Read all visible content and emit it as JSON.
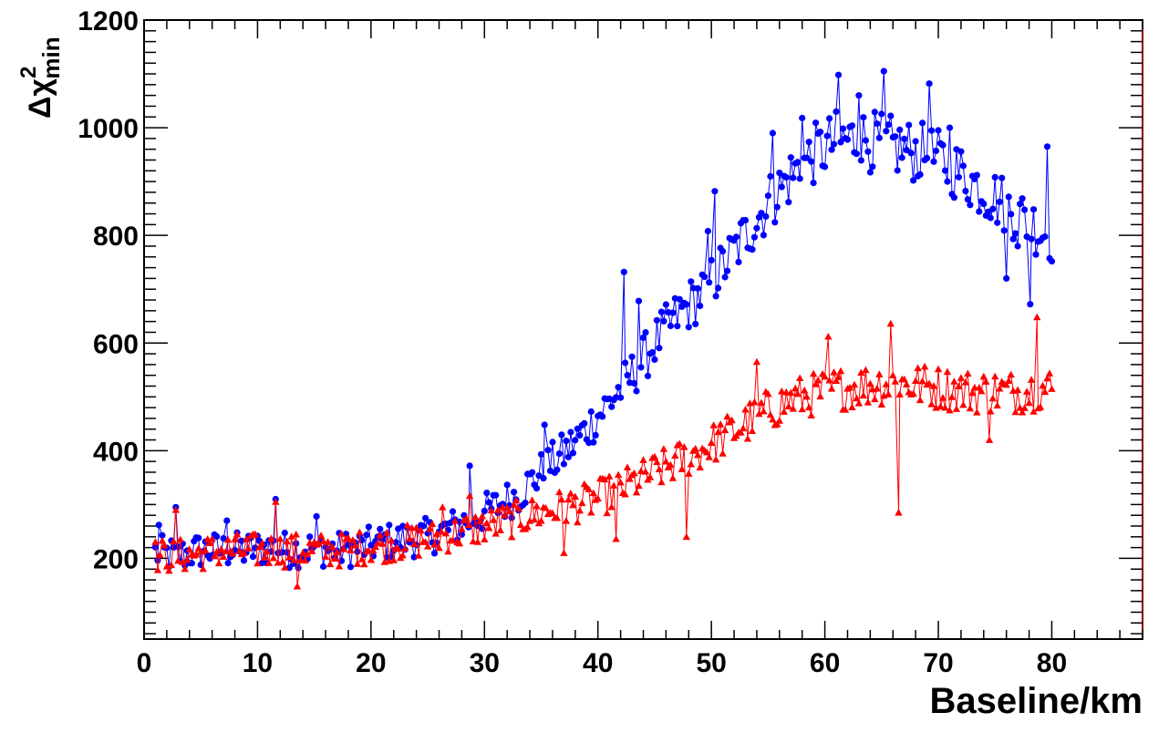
{
  "chart_data": {
    "type": "scatter",
    "title": "",
    "xlabel": "Baseline/km",
    "ylabel_main": "Δχ",
    "ylabel_sup": "2",
    "ylabel_sub": "min",
    "xlim": [
      0,
      88
    ],
    "ylim": [
      50,
      1200
    ],
    "x_ticks": [
      0,
      10,
      20,
      30,
      40,
      50,
      60,
      70,
      80
    ],
    "y_ticks": [
      200,
      400,
      600,
      800,
      1000,
      1200
    ],
    "grid": false,
    "series": [
      {
        "color": "#0000ff",
        "marker": "circle",
        "x": [
          1,
          3,
          5,
          7,
          9,
          11,
          13,
          15,
          17,
          19,
          21,
          23,
          25,
          27,
          29,
          31,
          33,
          35,
          37,
          39,
          41,
          43,
          45,
          47,
          49,
          51,
          53,
          55,
          57,
          59,
          61,
          63,
          65,
          67,
          69,
          71,
          73,
          75,
          77,
          79,
          80
        ],
        "y": [
          210,
          205,
          215,
          215,
          215,
          220,
          215,
          220,
          215,
          220,
          230,
          235,
          240,
          255,
          275,
          295,
          320,
          360,
          395,
          440,
          490,
          540,
          600,
          650,
          690,
          740,
          800,
          860,
          910,
          950,
          975,
          980,
          970,
          960,
          950,
          930,
          900,
          870,
          840,
          810,
          800
        ],
        "noise": 28,
        "spikes": [
          [
            1.3,
            262
          ],
          [
            2.8,
            295
          ],
          [
            7.3,
            270
          ],
          [
            11.6,
            310
          ],
          [
            15.2,
            278
          ],
          [
            28.7,
            372
          ],
          [
            35.3,
            448
          ],
          [
            42.3,
            732
          ],
          [
            43.6,
            678
          ],
          [
            49.7,
            808
          ],
          [
            50.3,
            882
          ],
          [
            55.4,
            990
          ],
          [
            58.0,
            1018
          ],
          [
            61.2,
            1098
          ],
          [
            63.0,
            1060
          ],
          [
            65.2,
            1105
          ],
          [
            69.2,
            1082
          ],
          [
            71.0,
            1000
          ],
          [
            76.0,
            720
          ],
          [
            77.0,
            780
          ],
          [
            78.1,
            672
          ],
          [
            79.6,
            965
          ]
        ]
      },
      {
        "color": "#ff0000",
        "marker": "triangle",
        "x": [
          1,
          3,
          5,
          7,
          9,
          11,
          13,
          15,
          17,
          19,
          21,
          23,
          25,
          27,
          29,
          31,
          33,
          35,
          37,
          39,
          41,
          43,
          45,
          47,
          49,
          51,
          53,
          55,
          57,
          59,
          61,
          63,
          65,
          67,
          69,
          71,
          73,
          75,
          77,
          79,
          80
        ],
        "y": [
          205,
          205,
          210,
          215,
          215,
          215,
          215,
          215,
          215,
          220,
          225,
          230,
          235,
          245,
          255,
          265,
          275,
          285,
          295,
          305,
          320,
          340,
          360,
          380,
          400,
          425,
          450,
          475,
          495,
          505,
          515,
          520,
          525,
          525,
          520,
          515,
          510,
          510,
          510,
          515,
          515
        ],
        "noise": 26,
        "spikes": [
          [
            2.8,
            290
          ],
          [
            11.6,
            305
          ],
          [
            13.5,
            148
          ],
          [
            26.3,
            295
          ],
          [
            28.7,
            316
          ],
          [
            37.0,
            210
          ],
          [
            41.6,
            236
          ],
          [
            47.8,
            240
          ],
          [
            54.0,
            565
          ],
          [
            60.3,
            612
          ],
          [
            65.8,
            636
          ],
          [
            66.5,
            285
          ],
          [
            78.7,
            648
          ],
          [
            74.5,
            420
          ]
        ]
      }
    ]
  }
}
